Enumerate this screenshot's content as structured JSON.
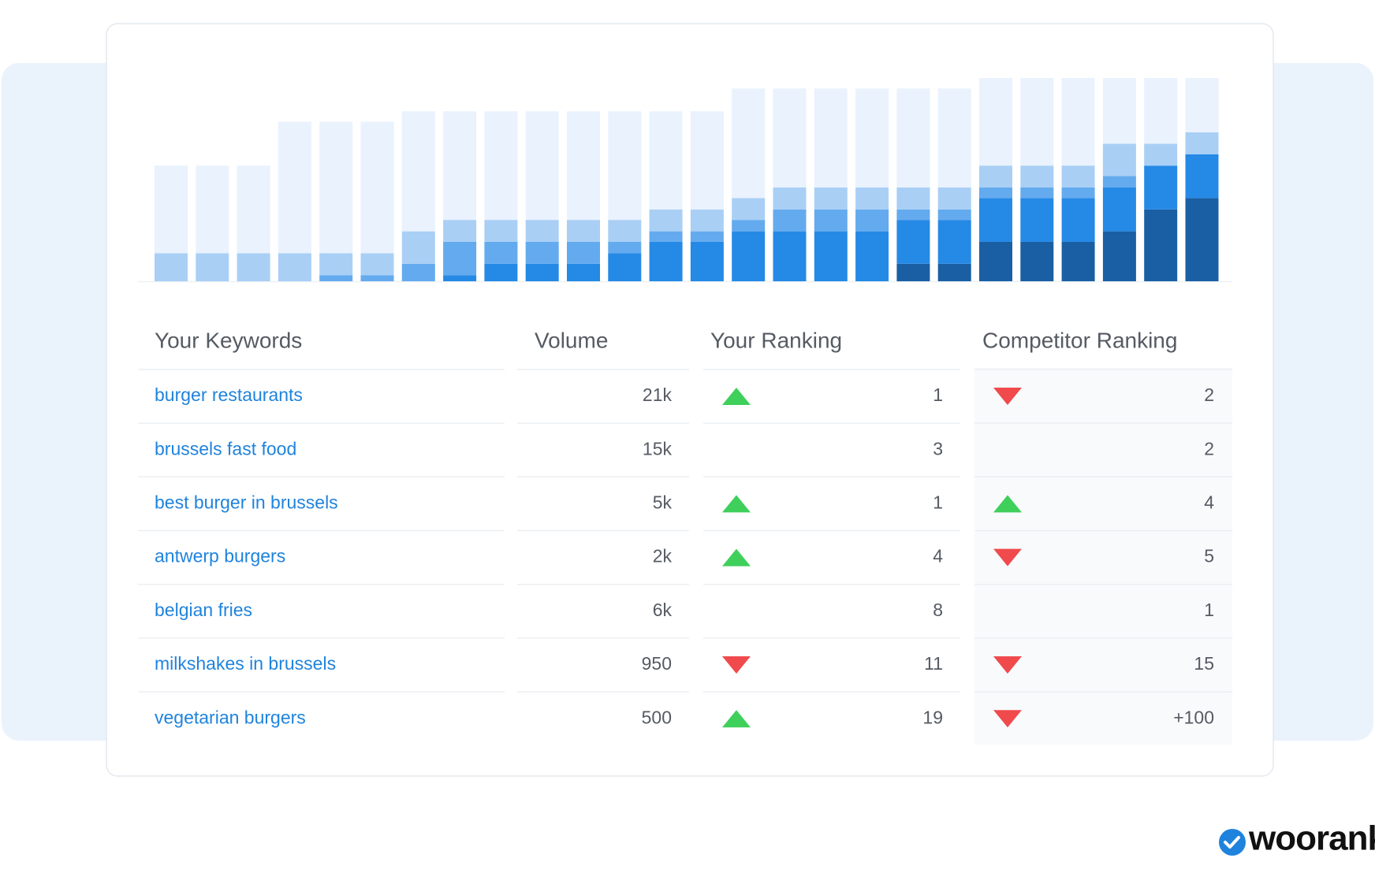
{
  "chart_data": {
    "type": "bar",
    "stacked": true,
    "ylim": [
      0,
      232
    ],
    "series": [
      {
        "color": "#1a5fa3",
        "values": [
          0,
          0,
          0,
          0,
          0,
          0,
          0,
          0,
          0,
          0,
          0,
          0,
          0,
          0,
          0,
          0,
          0,
          0,
          20,
          20,
          45,
          45,
          45,
          57,
          82,
          95
        ]
      },
      {
        "color": "#2589e6",
        "values": [
          0,
          0,
          0,
          0,
          0,
          0,
          0,
          7,
          20,
          20,
          20,
          32,
          45,
          45,
          57,
          57,
          57,
          57,
          50,
          50,
          50,
          50,
          50,
          50,
          50,
          50
        ]
      },
      {
        "color": "#64aaee",
        "values": [
          0,
          0,
          0,
          0,
          7,
          7,
          20,
          38,
          25,
          25,
          25,
          13,
          12,
          12,
          13,
          25,
          25,
          25,
          12,
          12,
          12,
          12,
          12,
          13,
          0,
          0
        ]
      },
      {
        "color": "#a9cff5",
        "values": [
          32,
          32,
          32,
          32,
          25,
          25,
          37,
          25,
          25,
          25,
          25,
          25,
          25,
          25,
          25,
          25,
          25,
          25,
          25,
          25,
          25,
          25,
          25,
          37,
          25,
          25
        ]
      },
      {
        "color": "#e9f2fd",
        "values": [
          100,
          100,
          100,
          150,
          150,
          150,
          137,
          124,
          124,
          124,
          124,
          124,
          112,
          112,
          125,
          113,
          113,
          113,
          113,
          113,
          100,
          100,
          100,
          75,
          75,
          62
        ]
      }
    ]
  },
  "table": {
    "header": [
      "Your Keywords",
      "Volume",
      "Your Ranking",
      "Competitor Ranking"
    ],
    "rows": [
      {
        "keyword": "burger restaurants",
        "volume": "21k",
        "your_trend": "up",
        "your_rank": "1",
        "comp_trend": "down",
        "comp_rank": "2"
      },
      {
        "keyword": "brussels fast food",
        "volume": "15k",
        "your_trend": null,
        "your_rank": "3",
        "comp_trend": null,
        "comp_rank": "2"
      },
      {
        "keyword": "best burger in brussels",
        "volume": "5k",
        "your_trend": "up",
        "your_rank": "1",
        "comp_trend": "up",
        "comp_rank": "4"
      },
      {
        "keyword": "antwerp burgers",
        "volume": "2k",
        "your_trend": "up",
        "your_rank": "4",
        "comp_trend": "down",
        "comp_rank": "5"
      },
      {
        "keyword": "belgian fries",
        "volume": "6k",
        "your_trend": null,
        "your_rank": "8",
        "comp_trend": null,
        "comp_rank": "1"
      },
      {
        "keyword": "milkshakes in brussels",
        "volume": "950",
        "your_trend": "down",
        "your_rank": "11",
        "comp_trend": "down",
        "comp_rank": "15"
      },
      {
        "keyword": "vegetarian burgers",
        "volume": "500",
        "your_trend": "up",
        "your_rank": "19",
        "comp_trend": "down",
        "comp_rank": "+100"
      }
    ]
  },
  "logo": "woorank"
}
